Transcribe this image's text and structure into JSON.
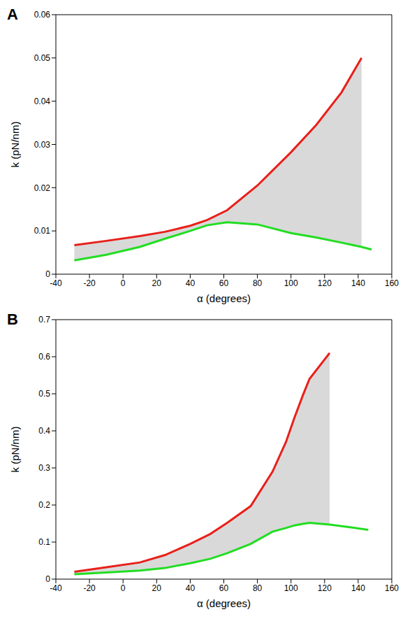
{
  "chart_data": [
    {
      "type": "line",
      "panel_label": "A",
      "x_label": "α (degrees)",
      "y_label": "k (pN/nm)",
      "x": [
        -29,
        -10,
        10,
        25,
        40,
        50,
        62,
        80,
        100,
        115,
        130,
        142,
        148
      ],
      "series": [
        {
          "color": "#e8201a",
          "values": [
            0.0067,
            0.0077,
            0.0088,
            0.0098,
            0.0112,
            0.0125,
            0.0148,
            0.0205,
            0.0282,
            0.0345,
            0.042,
            0.05,
            null
          ]
        },
        {
          "color": "#22dd22",
          "values": [
            0.0032,
            0.0045,
            0.0063,
            0.0082,
            0.01,
            0.0113,
            0.012,
            0.0115,
            0.0095,
            0.0085,
            0.0073,
            0.0063,
            0.0057
          ]
        }
      ],
      "xlim": [
        -40,
        160
      ],
      "xticks": [
        -40,
        -20,
        0,
        20,
        40,
        60,
        80,
        100,
        120,
        140,
        160
      ],
      "ylim": [
        0,
        0.06
      ],
      "yticks": [
        0,
        0.01,
        0.02,
        0.03,
        0.04,
        0.05,
        0.06
      ],
      "grid": false
    },
    {
      "type": "line",
      "panel_label": "B",
      "x_label": "α (degrees)",
      "y_label": "k (pN/nm)",
      "x": [
        -29,
        -10,
        10,
        25,
        40,
        52,
        62,
        76,
        89,
        97,
        102,
        107,
        111,
        123,
        135,
        146
      ],
      "series": [
        {
          "color": "#e8201a",
          "values": [
            0.02,
            0.032,
            0.045,
            0.065,
            0.095,
            0.122,
            0.152,
            0.197,
            0.29,
            0.37,
            0.435,
            0.495,
            0.54,
            0.61,
            null,
            null
          ]
        },
        {
          "color": "#22dd22",
          "values": [
            0.013,
            0.018,
            0.023,
            0.03,
            0.043,
            0.055,
            0.07,
            0.095,
            0.128,
            0.138,
            0.145,
            0.149,
            0.152,
            0.147,
            0.14,
            0.133
          ]
        }
      ],
      "xlim": [
        -40,
        160
      ],
      "xticks": [
        -40,
        -20,
        0,
        20,
        40,
        60,
        80,
        100,
        120,
        140,
        160
      ],
      "ylim": [
        0,
        0.7
      ],
      "yticks": [
        0,
        0.1,
        0.2,
        0.3,
        0.4,
        0.5,
        0.6,
        0.7
      ],
      "grid": false
    }
  ]
}
